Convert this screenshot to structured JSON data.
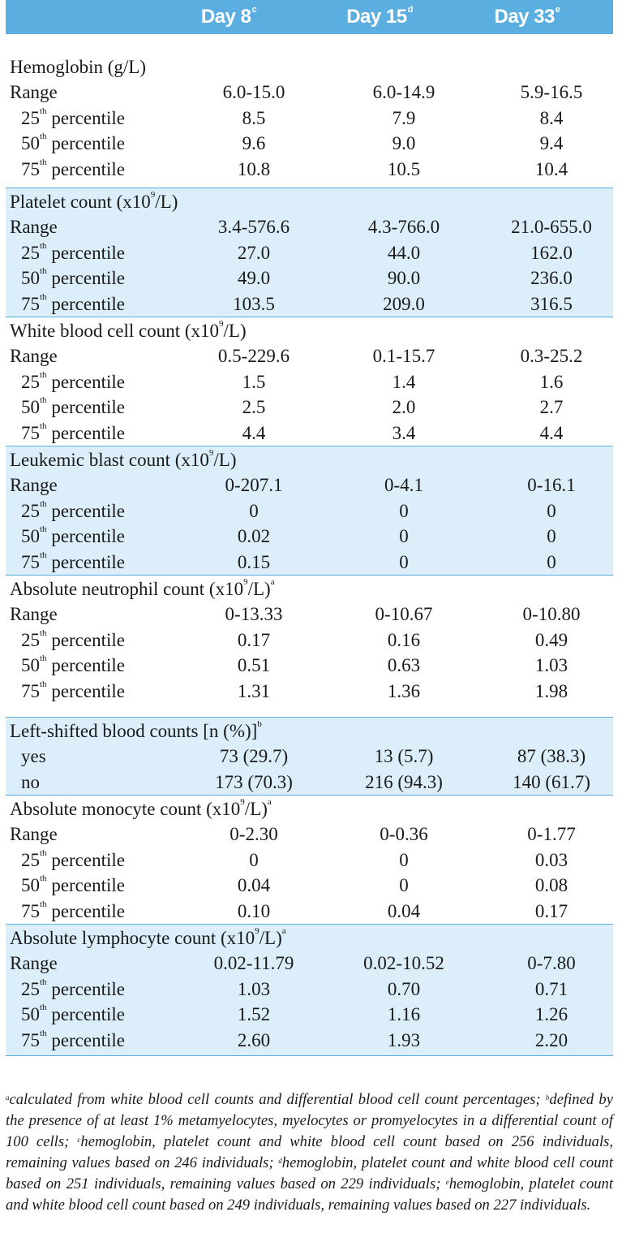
{
  "header": {
    "col1": "Day 8",
    "col1_sup": "c",
    "col2": "Day 15",
    "col2_sup": "d",
    "col3": "Day 33",
    "col3_sup": "e"
  },
  "sections": [
    {
      "title": "Hemoglobin (g/L)",
      "title_sup": "",
      "title_sup2": "",
      "rows": [
        {
          "label": "Range",
          "sup": "",
          "rest": "",
          "v": [
            "6.0-15.0",
            "6.0-14.9",
            "5.9-16.5"
          ]
        },
        {
          "label": "25",
          "sup": "th",
          "rest": " percentile",
          "v": [
            "8.5",
            "7.9",
            "8.4"
          ]
        },
        {
          "label": "50",
          "sup": "th",
          "rest": " percentile",
          "v": [
            "9.6",
            "9.0",
            "9.4"
          ]
        },
        {
          "label": "75",
          "sup": "th",
          "rest": " percentile",
          "v": [
            "10.8",
            "10.5",
            "10.4"
          ]
        }
      ]
    },
    {
      "title": "Platelet count (x10",
      "title_sup": "9",
      "title_rest": "/L)",
      "title_sup2": "",
      "rows": [
        {
          "label": "Range",
          "sup": "",
          "rest": "",
          "v": [
            "3.4-576.6",
            "4.3-766.0",
            "21.0-655.0"
          ]
        },
        {
          "label": "25",
          "sup": "th",
          "rest": " percentile",
          "v": [
            "27.0",
            "44.0",
            "162.0"
          ]
        },
        {
          "label": "50",
          "sup": "th",
          "rest": " percentile",
          "v": [
            "49.0",
            "90.0",
            "236.0"
          ]
        },
        {
          "label": "75",
          "sup": "th",
          "rest": " percentile",
          "v": [
            "103.5",
            "209.0",
            "316.5"
          ]
        }
      ]
    },
    {
      "title": "White blood cell count (x10",
      "title_sup": "9",
      "title_rest": "/L)",
      "title_sup2": "",
      "rows": [
        {
          "label": "Range",
          "sup": "",
          "rest": "",
          "v": [
            "0.5-229.6",
            "0.1-15.7",
            "0.3-25.2"
          ]
        },
        {
          "label": "25",
          "sup": "th",
          "rest": " percentile",
          "v": [
            "1.5",
            "1.4",
            "1.6"
          ]
        },
        {
          "label": "50",
          "sup": "th",
          "rest": " percentile",
          "v": [
            "2.5",
            "2.0",
            "2.7"
          ]
        },
        {
          "label": "75",
          "sup": "th",
          "rest": " percentile",
          "v": [
            "4.4",
            "3.4",
            "4.4"
          ]
        }
      ]
    },
    {
      "title": "Leukemic blast count (x10",
      "title_sup": "9",
      "title_rest": "/L)",
      "title_sup2": "",
      "rows": [
        {
          "label": "Range",
          "sup": "",
          "rest": "",
          "v": [
            "0-207.1",
            "0-4.1",
            "0-16.1"
          ]
        },
        {
          "label": "25",
          "sup": "th",
          "rest": " percentile",
          "v": [
            "0",
            "0",
            "0"
          ]
        },
        {
          "label": "50",
          "sup": "th",
          "rest": " percentile",
          "v": [
            "0.02",
            "0",
            "0"
          ]
        },
        {
          "label": "75",
          "sup": "th",
          "rest": " percentile",
          "v": [
            "0.15",
            "0",
            "0"
          ]
        }
      ]
    },
    {
      "title": "Absolute neutrophil count (x10",
      "title_sup": "9",
      "title_rest": "/L)",
      "title_sup2": "a",
      "rows": [
        {
          "label": "Range",
          "sup": "",
          "rest": "",
          "v": [
            "0-13.33",
            "0-10.67",
            "0-10.80"
          ]
        },
        {
          "label": "25",
          "sup": "th",
          "rest": " percentile",
          "v": [
            "0.17",
            "0.16",
            "0.49"
          ]
        },
        {
          "label": "50",
          "sup": "th",
          "rest": " percentile",
          "v": [
            "0.51",
            "0.63",
            "1.03"
          ]
        },
        {
          "label": "75",
          "sup": "th",
          "rest": " percentile",
          "v": [
            "1.31",
            "1.36",
            "1.98"
          ]
        }
      ]
    },
    {
      "title": "Left-shifted blood counts [n (%)]",
      "title_sup": "",
      "title_rest": "",
      "title_sup2": "b",
      "rows": [
        {
          "label": "yes",
          "sup": "",
          "rest": "",
          "v": [
            "73 (29.7)",
            "13 (5.7)",
            "87 (38.3)"
          ]
        },
        {
          "label": "no",
          "sup": "",
          "rest": "",
          "v": [
            "173 (70.3)",
            "216 (94.3)",
            "140 (61.7)"
          ]
        }
      ]
    },
    {
      "title": "Absolute monocyte count (x10",
      "title_sup": "9",
      "title_rest": "/L)",
      "title_sup2": "a",
      "rows": [
        {
          "label": "Range",
          "sup": "",
          "rest": "",
          "v": [
            "0-2.30",
            "0-0.36",
            "0-1.77"
          ]
        },
        {
          "label": "25",
          "sup": "th",
          "rest": " percentile",
          "v": [
            "0",
            "0",
            "0.03"
          ]
        },
        {
          "label": "50",
          "sup": "th",
          "rest": " percentile",
          "v": [
            "0.04",
            "0",
            "0.08"
          ]
        },
        {
          "label": "75",
          "sup": "th",
          "rest": " percentile",
          "v": [
            "0.10",
            "0.04",
            "0.17"
          ]
        }
      ]
    },
    {
      "title": "Absolute lymphocyte count (x10",
      "title_sup": "9",
      "title_rest": "/L)",
      "title_sup2": "a",
      "rows": [
        {
          "label": "Range",
          "sup": "",
          "rest": "",
          "v": [
            "0.02-11.79",
            "0.02-10.52",
            "0-7.80"
          ]
        },
        {
          "label": "25",
          "sup": "th",
          "rest": " percentile",
          "v": [
            "1.03",
            "0.70",
            "0.71"
          ]
        },
        {
          "label": "50",
          "sup": "th",
          "rest": " percentile",
          "v": [
            "1.52",
            "1.16",
            "1.26"
          ]
        },
        {
          "label": "75",
          "sup": "th",
          "rest": " percentile",
          "v": [
            "2.60",
            "1.93",
            "2.20"
          ]
        }
      ]
    }
  ],
  "footnote": {
    "a_mark": "a",
    "a_text": "calculated from white blood cell counts and differential blood cell count percentages; ",
    "b_mark": "b",
    "b_text": "defined by the presence of at least 1% metamyelocytes, myelocytes or promyelocytes in a differential count of 100 cells; ",
    "c_mark": "c",
    "c_text": "hemoglobin, platelet count and white blood cell count based on 256 individuals, remaining values based on 246 individuals; ",
    "d_mark": "d",
    "d_text": "hemoglobin, platelet count and white blood cell count based on 251 individuals, remaining values based on 229 individuals; ",
    "e_mark": "e",
    "e_text": "hemoglobin, platelet count and white blood cell count based on 249 individuals, remaining values based on 227 individuals."
  },
  "colors": {
    "header_bg": "#5aaee0",
    "shade_bg": "#d6ebf9",
    "rule": "#5aaee0"
  }
}
